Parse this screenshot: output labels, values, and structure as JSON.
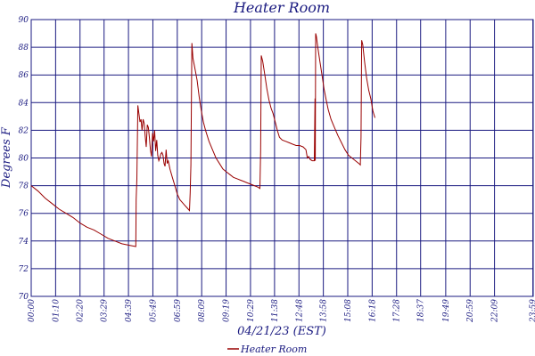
{
  "chart_data": {
    "type": "line",
    "title": "Heater Room",
    "xlabel": "04/21/23 (EST)",
    "ylabel": "Degrees F",
    "xlim": [
      0,
      1440
    ],
    "ylim": [
      70,
      90
    ],
    "yticks": [
      70,
      72,
      74,
      76,
      78,
      80,
      82,
      84,
      86,
      88,
      90
    ],
    "xticks": [
      {
        "t": 0,
        "label": "00:00"
      },
      {
        "t": 70,
        "label": "01:10"
      },
      {
        "t": 140,
        "label": "02:20"
      },
      {
        "t": 209,
        "label": "03:29"
      },
      {
        "t": 279,
        "label": "04:39"
      },
      {
        "t": 349,
        "label": "05:49"
      },
      {
        "t": 419,
        "label": "06:59"
      },
      {
        "t": 489,
        "label": "08:09"
      },
      {
        "t": 559,
        "label": "09:19"
      },
      {
        "t": 629,
        "label": "10:29"
      },
      {
        "t": 698,
        "label": "11:38"
      },
      {
        "t": 768,
        "label": "12:48"
      },
      {
        "t": 838,
        "label": "13:58"
      },
      {
        "t": 908,
        "label": "15:08"
      },
      {
        "t": 978,
        "label": "16:18"
      },
      {
        "t": 1048,
        "label": "17:28"
      },
      {
        "t": 1117,
        "label": "18:37"
      },
      {
        "t": 1189,
        "label": "19:49"
      },
      {
        "t": 1259,
        "label": "20:59"
      },
      {
        "t": 1329,
        "label": "22:09"
      },
      {
        "t": 1439,
        "label": "23:59"
      }
    ],
    "grid": true,
    "legend": "bottom-center",
    "colors": {
      "line": "#990000",
      "grid": "#1a1a80",
      "text": "#1a1a80"
    },
    "series": [
      {
        "name": "Heater Room",
        "points": [
          [
            0,
            78.0
          ],
          [
            20,
            77.6
          ],
          [
            40,
            77.1
          ],
          [
            60,
            76.7
          ],
          [
            80,
            76.3
          ],
          [
            100,
            76.0
          ],
          [
            120,
            75.7
          ],
          [
            140,
            75.3
          ],
          [
            160,
            75.0
          ],
          [
            180,
            74.8
          ],
          [
            200,
            74.5
          ],
          [
            220,
            74.2
          ],
          [
            240,
            74.0
          ],
          [
            260,
            73.8
          ],
          [
            280,
            73.7
          ],
          [
            300,
            73.6
          ],
          [
            301,
            77.0
          ],
          [
            303,
            78.5
          ],
          [
            306,
            83.8
          ],
          [
            309,
            83.2
          ],
          [
            312,
            82.6
          ],
          [
            315,
            82.8
          ],
          [
            318,
            82.0
          ],
          [
            321,
            82.8
          ],
          [
            324,
            82.5
          ],
          [
            327,
            81.6
          ],
          [
            330,
            80.8
          ],
          [
            333,
            82.4
          ],
          [
            336,
            82.2
          ],
          [
            339,
            81.5
          ],
          [
            342,
            80.6
          ],
          [
            345,
            80.1
          ],
          [
            348,
            81.8
          ],
          [
            351,
            81.2
          ],
          [
            354,
            82.0
          ],
          [
            357,
            80.5
          ],
          [
            360,
            81.3
          ],
          [
            363,
            80.2
          ],
          [
            366,
            79.8
          ],
          [
            369,
            80.0
          ],
          [
            372,
            80.3
          ],
          [
            375,
            80.4
          ],
          [
            378,
            80.2
          ],
          [
            381,
            79.6
          ],
          [
            384,
            79.4
          ],
          [
            387,
            80.6
          ],
          [
            390,
            79.6
          ],
          [
            393,
            79.8
          ],
          [
            398,
            79.2
          ],
          [
            405,
            78.6
          ],
          [
            412,
            78.0
          ],
          [
            419,
            77.4
          ],
          [
            426,
            77.0
          ],
          [
            433,
            76.8
          ],
          [
            440,
            76.6
          ],
          [
            447,
            76.4
          ],
          [
            454,
            76.2
          ],
          [
            456,
            77.5
          ],
          [
            458,
            79.5
          ],
          [
            461,
            88.3
          ],
          [
            464,
            87.2
          ],
          [
            470,
            86.4
          ],
          [
            476,
            85.6
          ],
          [
            482,
            84.4
          ],
          [
            488,
            83.4
          ],
          [
            494,
            82.6
          ],
          [
            500,
            82.0
          ],
          [
            510,
            81.2
          ],
          [
            520,
            80.6
          ],
          [
            530,
            80.0
          ],
          [
            540,
            79.6
          ],
          [
            550,
            79.2
          ],
          [
            560,
            79.0
          ],
          [
            570,
            78.8
          ],
          [
            580,
            78.6
          ],
          [
            590,
            78.5
          ],
          [
            600,
            78.4
          ],
          [
            610,
            78.3
          ],
          [
            620,
            78.2
          ],
          [
            630,
            78.1
          ],
          [
            640,
            78.0
          ],
          [
            650,
            77.9
          ],
          [
            656,
            77.8
          ],
          [
            658,
            80.5
          ],
          [
            660,
            87.4
          ],
          [
            664,
            87.0
          ],
          [
            670,
            86.0
          ],
          [
            676,
            85.0
          ],
          [
            682,
            84.2
          ],
          [
            688,
            83.6
          ],
          [
            694,
            83.2
          ],
          [
            700,
            82.6
          ],
          [
            706,
            82.0
          ],
          [
            712,
            81.5
          ],
          [
            720,
            81.3
          ],
          [
            730,
            81.2
          ],
          [
            740,
            81.1
          ],
          [
            750,
            81.0
          ],
          [
            760,
            80.9
          ],
          [
            770,
            80.9
          ],
          [
            780,
            80.8
          ],
          [
            788,
            80.6
          ],
          [
            792,
            80.0
          ],
          [
            796,
            80.1
          ],
          [
            800,
            79.9
          ],
          [
            806,
            79.8
          ],
          [
            812,
            79.8
          ],
          [
            814,
            84.3
          ],
          [
            815,
            79.8
          ],
          [
            816,
            89.0
          ],
          [
            818,
            88.8
          ],
          [
            822,
            88.0
          ],
          [
            828,
            87.0
          ],
          [
            834,
            86.0
          ],
          [
            840,
            85.0
          ],
          [
            846,
            84.2
          ],
          [
            852,
            83.5
          ],
          [
            860,
            82.8
          ],
          [
            870,
            82.2
          ],
          [
            880,
            81.6
          ],
          [
            890,
            81.1
          ],
          [
            900,
            80.6
          ],
          [
            910,
            80.2
          ],
          [
            920,
            80.0
          ],
          [
            930,
            79.8
          ],
          [
            940,
            79.6
          ],
          [
            944,
            79.5
          ],
          [
            946,
            81.5
          ],
          [
            948,
            88.5
          ],
          [
            951,
            88.2
          ],
          [
            956,
            87.0
          ],
          [
            962,
            85.8
          ],
          [
            968,
            84.9
          ],
          [
            974,
            84.3
          ],
          [
            980,
            83.4
          ],
          [
            986,
            82.9
          ]
        ]
      }
    ]
  }
}
